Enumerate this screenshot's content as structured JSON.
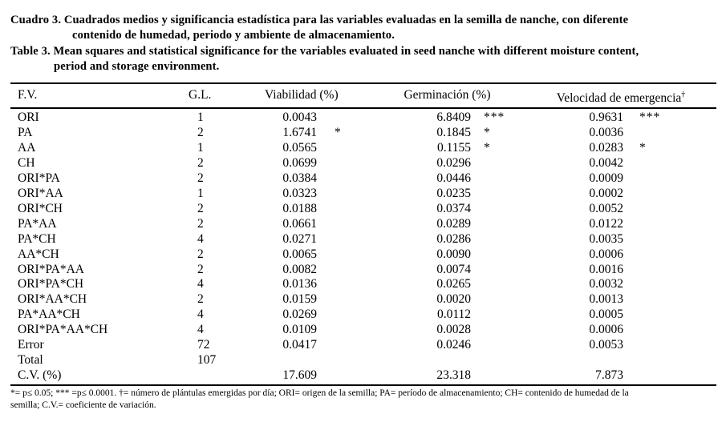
{
  "captions": {
    "es_lines": [
      "Cuadro 3. Cuadrados medios y significancia estadística para las variables evaluadas en la semilla de nanche, con diferente",
      "contenido de humedad, periodo y ambiente de almacenamiento."
    ],
    "en_lines": [
      "Table 3. Mean squares and statistical significance for the variables evaluated in seed nanche with different moisture content,",
      "period and storage environment."
    ]
  },
  "table": {
    "headers": {
      "fv": "F.V.",
      "gl": "G.L.",
      "viability": "Viabilidad (%)",
      "germination": "Germinación (%)",
      "emergence": "Velocidad de emergencia",
      "emergence_sup": "†"
    },
    "rows": [
      {
        "fv": "ORI",
        "gl": "1",
        "viab": "0.0043",
        "viab_sig": "",
        "germ": "6.8409",
        "germ_sig": "***",
        "vel": "0.9631",
        "vel_sig": "***"
      },
      {
        "fv": "PA",
        "gl": "2",
        "viab": "1.6741",
        "viab_sig": "*",
        "germ": "0.1845",
        "germ_sig": "*",
        "vel": "0.0036",
        "vel_sig": ""
      },
      {
        "fv": "AA",
        "gl": "1",
        "viab": "0.0565",
        "viab_sig": "",
        "germ": "0.1155",
        "germ_sig": "*",
        "vel": "0.0283",
        "vel_sig": "*"
      },
      {
        "fv": "CH",
        "gl": "2",
        "viab": "0.0699",
        "viab_sig": "",
        "germ": "0.0296",
        "germ_sig": "",
        "vel": "0.0042",
        "vel_sig": ""
      },
      {
        "fv": "ORI*PA",
        "gl": "2",
        "viab": "0.0384",
        "viab_sig": "",
        "germ": "0.0446",
        "germ_sig": "",
        "vel": "0.0009",
        "vel_sig": ""
      },
      {
        "fv": "ORI*AA",
        "gl": "1",
        "viab": "0.0323",
        "viab_sig": "",
        "germ": "0.0235",
        "germ_sig": "",
        "vel": "0.0002",
        "vel_sig": ""
      },
      {
        "fv": "ORI*CH",
        "gl": "2",
        "viab": "0.0188",
        "viab_sig": "",
        "germ": "0.0374",
        "germ_sig": "",
        "vel": "0.0052",
        "vel_sig": ""
      },
      {
        "fv": "PA*AA",
        "gl": "2",
        "viab": "0.0661",
        "viab_sig": "",
        "germ": "0.0289",
        "germ_sig": "",
        "vel": "0.0122",
        "vel_sig": ""
      },
      {
        "fv": "PA*CH",
        "gl": "4",
        "viab": "0.0271",
        "viab_sig": "",
        "germ": "0.0286",
        "germ_sig": "",
        "vel": "0.0035",
        "vel_sig": ""
      },
      {
        "fv": "AA*CH",
        "gl": "2",
        "viab": "0.0065",
        "viab_sig": "",
        "germ": "0.0090",
        "germ_sig": "",
        "vel": "0.0006",
        "vel_sig": ""
      },
      {
        "fv": "ORI*PA*AA",
        "gl": "2",
        "viab": "0.0082",
        "viab_sig": "",
        "germ": "0.0074",
        "germ_sig": "",
        "vel": "0.0016",
        "vel_sig": ""
      },
      {
        "fv": "ORI*PA*CH",
        "gl": "4",
        "viab": "0.0136",
        "viab_sig": "",
        "germ": "0.0265",
        "germ_sig": "",
        "vel": "0.0032",
        "vel_sig": ""
      },
      {
        "fv": "ORI*AA*CH",
        "gl": "2",
        "viab": "0.0159",
        "viab_sig": "",
        "germ": "0.0020",
        "germ_sig": "",
        "vel": "0.0013",
        "vel_sig": ""
      },
      {
        "fv": "PA*AA*CH",
        "gl": "4",
        "viab": "0.0269",
        "viab_sig": "",
        "germ": "0.0112",
        "germ_sig": "",
        "vel": "0.0005",
        "vel_sig": ""
      },
      {
        "fv": "ORI*PA*AA*CH",
        "gl": "4",
        "viab": "0.0109",
        "viab_sig": "",
        "germ": "0.0028",
        "germ_sig": "",
        "vel": "0.0006",
        "vel_sig": ""
      },
      {
        "fv": "Error",
        "gl": "72",
        "viab": "0.0417",
        "viab_sig": "",
        "germ": "0.0246",
        "germ_sig": "",
        "vel": "0.0053",
        "vel_sig": ""
      },
      {
        "fv": "Total",
        "gl": "107",
        "viab": "",
        "viab_sig": "",
        "germ": "",
        "germ_sig": "",
        "vel": "",
        "vel_sig": ""
      },
      {
        "fv": "C.V. (%)",
        "gl": "",
        "viab": "17.609",
        "viab_sig": "",
        "germ": "23.318",
        "germ_sig": "",
        "vel": "7.873",
        "vel_sig": ""
      }
    ]
  },
  "footnote_lines": [
    "*= p≤ 0.05; *** =p≤ 0.0001. †= número de plántulas emergidas por día; ORI= origen de la semilla; PA= período de almacenamiento; CH= contenido de humedad de la",
    "semilla; C.V.= coeficiente de variación."
  ],
  "chart_data": {
    "type": "table",
    "title_es": "Cuadro 3. Cuadrados medios y significancia estadística para las variables evaluadas en la semilla de nanche, con diferente contenido de humedad, periodo y ambiente de almacenamiento.",
    "title_en": "Table 3. Mean squares and statistical significance for the variables evaluated in seed nanche with different moisture content, period and storage environment.",
    "columns": [
      "F.V.",
      "G.L.",
      "Viabilidad (%)",
      "Germinación (%)",
      "Velocidad de emergencia†"
    ]
  },
  "colors": {
    "text": "#000000",
    "background": "#ffffff",
    "rule": "#000000"
  }
}
